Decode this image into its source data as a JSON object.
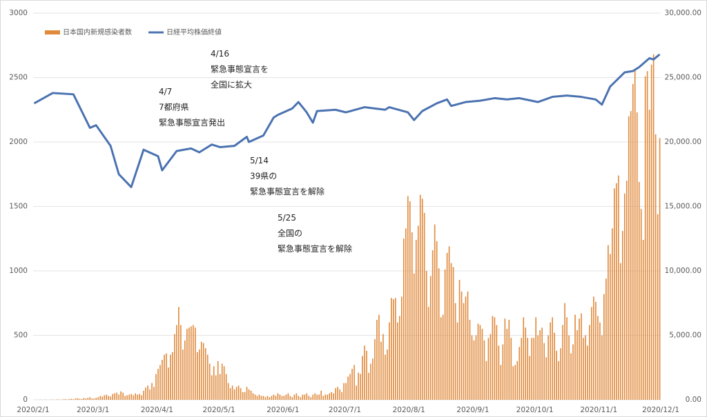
{
  "chart_data": {
    "type": "bar-line",
    "xlim": [
      0,
      304
    ],
    "xticks": [
      {
        "value": 0,
        "label": "2020/2/1"
      },
      {
        "value": 29,
        "label": "2020/3/1"
      },
      {
        "value": 60,
        "label": "2020/4/1"
      },
      {
        "value": 90,
        "label": "2020/5/1"
      },
      {
        "value": 121,
        "label": "2020/6/1"
      },
      {
        "value": 151,
        "label": "2020/7/1"
      },
      {
        "value": 182,
        "label": "2020/8/1"
      },
      {
        "value": 213,
        "label": "2020/9/1"
      },
      {
        "value": 243,
        "label": "2020/10/1"
      },
      {
        "value": 274,
        "label": "2020/11/1"
      },
      {
        "value": 304,
        "label": "2020/12/1"
      }
    ],
    "ylim": [
      0,
      3000
    ],
    "yticks": [
      0,
      500,
      1000,
      1500,
      2000,
      2500,
      3000
    ],
    "y2lim": [
      0,
      30000
    ],
    "y2ticks": [
      {
        "value": 0,
        "label": "0.00"
      },
      {
        "value": 5000,
        "label": "5,000.00"
      },
      {
        "value": 10000,
        "label": "10,000.00"
      },
      {
        "value": 15000,
        "label": "15,000.00"
      },
      {
        "value": 20000,
        "label": "20,000.00"
      },
      {
        "value": 25000,
        "label": "25,000.00"
      },
      {
        "value": 30000,
        "label": "30,000.00"
      }
    ],
    "grid": true,
    "legend": "top-left",
    "series": [
      {
        "name": "日本国内新規感染者数",
        "type": "bar",
        "color": "#e08a3c",
        "x": [
          0,
          1,
          2,
          3,
          4,
          5,
          6,
          7,
          8,
          9,
          10,
          11,
          12,
          13,
          14,
          15,
          16,
          17,
          18,
          19,
          20,
          21,
          22,
          23,
          24,
          25,
          26,
          27,
          28,
          29,
          30,
          31,
          32,
          33,
          34,
          35,
          36,
          37,
          38,
          39,
          40,
          41,
          42,
          43,
          44,
          45,
          46,
          47,
          48,
          49,
          50,
          51,
          52,
          53,
          54,
          55,
          56,
          57,
          58,
          59,
          60,
          61,
          62,
          63,
          64,
          65,
          66,
          67,
          68,
          69,
          70,
          71,
          72,
          73,
          74,
          75,
          76,
          77,
          78,
          79,
          80,
          81,
          82,
          83,
          84,
          85,
          86,
          87,
          88,
          89,
          90,
          91,
          92,
          93,
          94,
          95,
          96,
          97,
          98,
          99,
          100,
          101,
          102,
          103,
          104,
          105,
          106,
          107,
          108,
          109,
          110,
          111,
          112,
          113,
          114,
          115,
          116,
          117,
          118,
          119,
          120,
          121,
          122,
          123,
          124,
          125,
          126,
          127,
          128,
          129,
          130,
          131,
          132,
          133,
          134,
          135,
          136,
          137,
          138,
          139,
          140,
          141,
          142,
          143,
          144,
          145,
          146,
          147,
          148,
          149,
          150,
          151,
          152,
          153,
          154,
          155,
          156,
          157,
          158,
          159,
          160,
          161,
          162,
          163,
          164,
          165,
          166,
          167,
          168,
          169,
          170,
          171,
          172,
          173,
          174,
          175,
          176,
          177,
          178,
          179,
          180,
          181,
          182,
          183,
          184,
          185,
          186,
          187,
          188,
          189,
          190,
          191,
          192,
          193,
          194,
          195,
          196,
          197,
          198,
          199,
          200,
          201,
          202,
          203,
          204,
          205,
          206,
          207,
          208,
          209,
          210,
          211,
          212,
          213,
          214,
          215,
          216,
          217,
          218,
          219,
          220,
          221,
          222,
          223,
          224,
          225,
          226,
          227,
          228,
          229,
          230,
          231,
          232,
          233,
          234,
          235,
          236,
          237,
          238,
          239,
          240,
          241,
          242,
          243,
          244,
          245,
          246,
          247,
          248,
          249,
          250,
          251,
          252,
          253,
          254,
          255,
          256,
          257,
          258,
          259,
          260,
          261,
          262,
          263,
          264,
          265,
          266,
          267,
          268,
          269,
          270,
          271,
          272,
          273,
          274,
          275,
          276,
          277,
          278,
          279,
          280,
          281,
          282,
          283,
          284,
          285,
          286,
          287,
          288,
          289,
          290,
          291,
          292,
          293,
          294,
          295,
          296,
          297,
          298,
          299,
          300,
          301,
          302,
          303
        ],
        "values": [
          0,
          0,
          0,
          1,
          0,
          2,
          1,
          0,
          1,
          2,
          0,
          3,
          2,
          1,
          4,
          5,
          3,
          6,
          8,
          4,
          10,
          12,
          8,
          6,
          14,
          10,
          15,
          20,
          10,
          10,
          15,
          20,
          30,
          25,
          35,
          40,
          30,
          25,
          45,
          50,
          55,
          40,
          65,
          55,
          30,
          35,
          40,
          45,
          35,
          50,
          40,
          45,
          35,
          70,
          95,
          110,
          80,
          130,
          100,
          200,
          240,
          270,
          310,
          350,
          360,
          250,
          350,
          370,
          510,
          580,
          720,
          580,
          390,
          460,
          550,
          560,
          570,
          580,
          560,
          370,
          390,
          450,
          440,
          400,
          350,
          280,
          190,
          260,
          190,
          300,
          200,
          280,
          260,
          200,
          130,
          90,
          110,
          80,
          100,
          110,
          90,
          60,
          60,
          100,
          80,
          70,
          50,
          40,
          30,
          40,
          30,
          30,
          20,
          30,
          20,
          30,
          40,
          30,
          50,
          40,
          30,
          30,
          40,
          50,
          30,
          20,
          40,
          50,
          30,
          20,
          40,
          40,
          50,
          30,
          20,
          40,
          50,
          40,
          40,
          70,
          30,
          40,
          40,
          50,
          60,
          50,
          90,
          100,
          80,
          60,
          130,
          130,
          180,
          200,
          240,
          270,
          110,
          210,
          200,
          340,
          420,
          380,
          210,
          280,
          320,
          470,
          620,
          660,
          450,
          510,
          350,
          390,
          600,
          790,
          780,
          790,
          600,
          650,
          800,
          1250,
          1330,
          1580,
          1540,
          1300,
          980,
          1240,
          1350,
          1590,
          1560,
          1450,
          1000,
          720,
          960,
          1160,
          1360,
          1230,
          1020,
          640,
          660,
          1010,
          1140,
          1190,
          1060,
          1030,
          750,
          600,
          930,
          840,
          750,
          800,
          840,
          620,
          500,
          460,
          500,
          590,
          580,
          550,
          460,
          300,
          480,
          510,
          650,
          640,
          580,
          420,
          270,
          430,
          630,
          550,
          620,
          480,
          260,
          270,
          300,
          410,
          480,
          640,
          560,
          480,
          340,
          480,
          480,
          640,
          500,
          540,
          560,
          440,
          330,
          500,
          600,
          640,
          520,
          380,
          300,
          400,
          580,
          750,
          640,
          500,
          360,
          430,
          660,
          540,
          630,
          670,
          480,
          500,
          420,
          580,
          720,
          800,
          760,
          650,
          600,
          500,
          820,
          940,
          1200,
          1130,
          1330,
          1640,
          1680,
          1740,
          1060,
          1310,
          1600,
          1700,
          2200,
          2240,
          2450,
          2560,
          2230,
          1690,
          1480,
          1240,
          2510,
          2550,
          2250,
          2600,
          2680,
          2060,
          1440,
          2030
        ]
      },
      {
        "name": "日経平均株価終値",
        "type": "line",
        "axis": "y2",
        "color": "#4a72b0",
        "x": [
          0,
          9,
          19,
          27,
          30,
          37,
          41,
          47,
          53,
          60,
          62,
          69,
          76,
          80,
          86,
          90,
          97,
          103,
          104,
          111,
          116,
          118,
          125,
          128,
          132,
          135,
          137,
          146,
          151,
          160,
          170,
          172,
          181,
          184,
          188,
          195,
          200,
          202,
          209,
          216,
          223,
          229,
          235,
          244,
          251,
          258,
          265,
          272,
          275,
          279,
          286,
          290,
          293,
          298,
          300,
          303
        ],
        "values": [
          23000,
          23800,
          23700,
          21100,
          21300,
          19700,
          17500,
          16500,
          19400,
          18900,
          17800,
          19300,
          19500,
          19200,
          19800,
          19600,
          19700,
          20400,
          20000,
          20500,
          21900,
          22100,
          22600,
          23100,
          22300,
          21500,
          22400,
          22500,
          22300,
          22700,
          22500,
          22700,
          22300,
          21700,
          22400,
          23000,
          23300,
          22800,
          23100,
          23200,
          23400,
          23300,
          23400,
          23100,
          23500,
          23600,
          23500,
          23300,
          22900,
          24300,
          25400,
          25500,
          25800,
          26500,
          26400,
          26800
        ]
      }
    ],
    "annotations": [
      {
        "lines": [
          "4/7",
          "7都府県",
          "緊急事態宣言発出"
        ]
      },
      {
        "lines": [
          "4/16",
          "緊急事態宣言を",
          "全国に拡大"
        ]
      },
      {
        "lines": [
          "5/14",
          "39県の",
          "緊急事態宣言を解除"
        ]
      },
      {
        "lines": [
          "5/25",
          "全国の",
          "緊急事態宣言を解除"
        ]
      }
    ]
  }
}
